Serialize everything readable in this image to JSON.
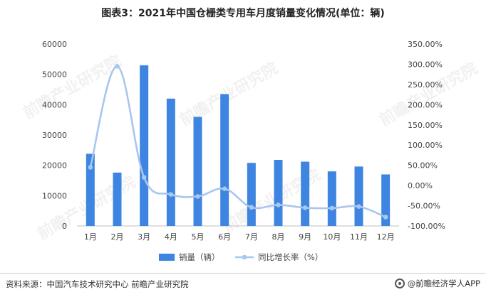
{
  "title": "图表3：2021年中国仓栅类专用车月度销量变化情况(单位：辆)",
  "source": "资料来源：中国汽车技术研究中心 前瞻产业研究院",
  "brand": "@前瞻经济学人APP",
  "watermark": "前瞻产业研究院",
  "colors": {
    "bar": "#3d85e0",
    "line": "#a9c6ee",
    "axis": "#bfbfbf"
  },
  "chart_data": {
    "type": "bar",
    "categories": [
      "1月",
      "2月",
      "3月",
      "4月",
      "5月",
      "6月",
      "7月",
      "8月",
      "9月",
      "10月",
      "11月",
      "12月"
    ],
    "ylim": [
      0,
      60000
    ],
    "yticks": [
      "0",
      "10000",
      "20000",
      "30000",
      "40000",
      "50000",
      "60000"
    ],
    "y2lim": [
      -100,
      350
    ],
    "y2ticks": [
      "-100.00%",
      "-50.00%",
      "0.00%",
      "50.00%",
      "100.00%",
      "150.00%",
      "200.00%",
      "250.00%",
      "300.00%",
      "350.00%"
    ],
    "legend_position": "bottom",
    "series": [
      {
        "name": "销量（辆）",
        "type": "bar",
        "axis": "left",
        "values": [
          23800,
          17600,
          53000,
          42000,
          36000,
          43500,
          20800,
          21800,
          21200,
          18000,
          19600,
          17000
        ]
      },
      {
        "name": "同比增长率（%）",
        "type": "line",
        "axis": "right",
        "values": [
          45,
          295,
          20,
          -22,
          -27,
          -8,
          -54,
          -48,
          -55,
          -56,
          -52,
          -78
        ]
      }
    ]
  }
}
